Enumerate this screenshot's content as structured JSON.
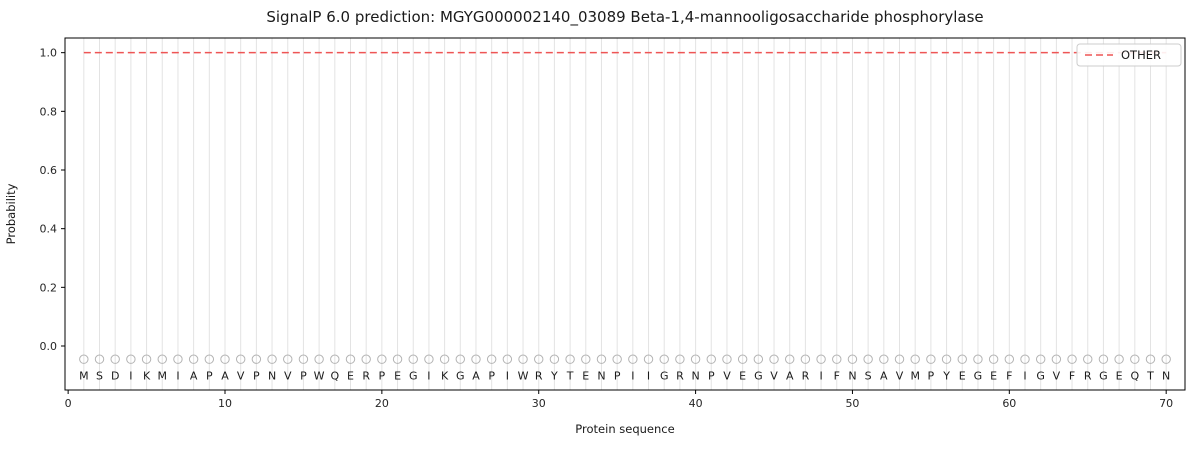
{
  "chart_data": {
    "type": "line",
    "title": "SignalP 6.0 prediction: MGYG000002140_03089 Beta-1,4-mannooligosaccharide phosphorylase",
    "xlabel": "Protein sequence",
    "ylabel": "Probability",
    "xlim": [
      -0.2,
      71.2
    ],
    "ylim": [
      -0.15,
      1.05
    ],
    "x_ticks": [
      0,
      10,
      20,
      30,
      40,
      50,
      60,
      70
    ],
    "y_ticks": [
      0.0,
      0.2,
      0.4,
      0.6,
      0.8,
      1.0
    ],
    "grid": "vertical-line-per-residue",
    "sequence": "MSDIKMIAPAVPNVPWQERPEGIKGAPIWRYTENPIIGRNPVEGVARIFNSAVMPYEGEFIGVFRGEQTN",
    "marker_y": -0.045,
    "letter_y": -0.1,
    "series": [
      {
        "name": "OTHER",
        "style": "dashed",
        "color": "#ee5555",
        "y_constant": 1.0,
        "x_start": 1,
        "x_end": 70
      }
    ],
    "legend": {
      "position": "top-right",
      "entries": [
        {
          "label": "OTHER",
          "color": "#ee5555",
          "style": "dashed"
        }
      ]
    },
    "colors": {
      "grid": "#e3e3e3",
      "marker": "#b3b3b3",
      "letter": "#1a1a1a",
      "axis": "#000000",
      "legend_border": "#cccccc",
      "background": "#ffffff"
    }
  }
}
